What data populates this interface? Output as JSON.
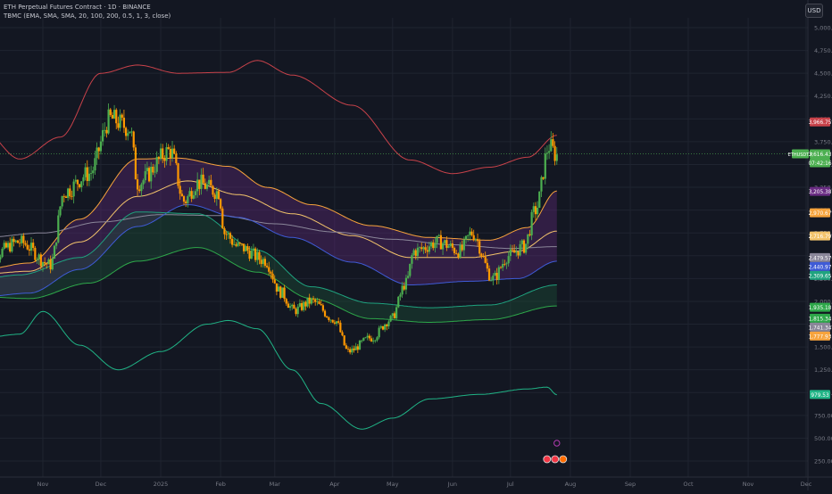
{
  "legend": {
    "symbol_line": "ETH Perpetual Futures Contract · 1D · BINANCE",
    "indicator_line": "TBMC (EMA, SMA, SMA, 20, 100, 200, 0.5, 1, 3, close)"
  },
  "currency_button": "USD",
  "colors": {
    "background": "#131722",
    "grid": "#1f2430",
    "axis_text": "#787b86",
    "candle_up": "#4caf50",
    "candle_down": "#ff9800",
    "upper_outer": "#c8424a",
    "band_orange": "#f7a33c",
    "band_yellow": "#f2c36b",
    "mid_gray": "#8a8699",
    "band_blue": "#3f5bd6",
    "band_teal": "#1fa37f",
    "band_green": "#2ea84a",
    "lower_outer": "#20b486",
    "purple_fill": "#6a2c83",
    "green_fill": "#1c5a3a"
  },
  "chart_data": {
    "type": "candlestick",
    "ylim": [
      250,
      5000
    ],
    "y_ticks": [
      "5,000.00",
      "4,750.00",
      "4,500.00",
      "4,250.00",
      "4,000.00",
      "3,750.00",
      "3,500.00",
      "3,250.00",
      "3,000.00",
      "2,750.00",
      "2,500.00",
      "2,250.00",
      "2,000.00",
      "1,750.00",
      "1,500.00",
      "1,250.00",
      "1,000.00",
      "750.00",
      "500.00",
      "250.00"
    ],
    "x_ticks": [
      "Nov",
      "Dec",
      "2025",
      "Feb",
      "Mar",
      "Apr",
      "May",
      "Jun",
      "Jul",
      "Aug",
      "Sep",
      "Oct",
      "Nov",
      "Dec"
    ],
    "x_tick_dates": [
      "2024-11-01",
      "2024-12-01",
      "2025-01-01",
      "2025-02-01",
      "2025-03-01",
      "2025-04-01",
      "2025-05-01",
      "2025-06-01",
      "2025-07-01",
      "2025-08-01",
      "2025-09-01",
      "2025-10-01",
      "2025-11-01",
      "2025-12-01"
    ],
    "price_anchors": [
      [
        "2024-10-02",
        2450
      ],
      [
        "2024-10-20",
        2650
      ],
      [
        "2024-11-05",
        2400
      ],
      [
        "2024-11-12",
        3200
      ],
      [
        "2024-11-25",
        3400
      ],
      [
        "2024-12-06",
        4000
      ],
      [
        "2024-12-16",
        3900
      ],
      [
        "2024-12-20",
        3300
      ],
      [
        "2025-01-06",
        3650
      ],
      [
        "2025-01-13",
        3100
      ],
      [
        "2025-01-20",
        3300
      ],
      [
        "2025-01-31",
        3200
      ],
      [
        "2025-02-03",
        2750
      ],
      [
        "2025-02-10",
        2600
      ],
      [
        "2025-02-24",
        2450
      ],
      [
        "2025-03-04",
        2100
      ],
      [
        "2025-03-11",
        1900
      ],
      [
        "2025-03-20",
        2000
      ],
      [
        "2025-04-01",
        1800
      ],
      [
        "2025-04-08",
        1450
      ],
      [
        "2025-04-20",
        1600
      ],
      [
        "2025-04-30",
        1800
      ],
      [
        "2025-05-08",
        2200
      ],
      [
        "2025-05-12",
        2550
      ],
      [
        "2025-05-25",
        2650
      ],
      [
        "2025-06-05",
        2550
      ],
      [
        "2025-06-11",
        2750
      ],
      [
        "2025-06-22",
        2250
      ],
      [
        "2025-06-30",
        2500
      ],
      [
        "2025-07-08",
        2600
      ],
      [
        "2025-07-14",
        3000
      ],
      [
        "2025-07-21",
        3700
      ],
      [
        "2025-07-25",
        3600
      ]
    ],
    "series": [
      {
        "role": "upper_outer",
        "color": "#c8424a",
        "points": [
          [
            "2024-10-01",
            3880
          ],
          [
            "2024-10-20",
            3560
          ],
          [
            "2024-11-10",
            3800
          ],
          [
            "2024-12-01",
            4500
          ],
          [
            "2024-12-20",
            4590
          ],
          [
            "2025-01-10",
            4500
          ],
          [
            "2025-02-05",
            4510
          ],
          [
            "2025-02-20",
            4640
          ],
          [
            "2025-03-10",
            4480
          ],
          [
            "2025-04-10",
            4150
          ],
          [
            "2025-05-10",
            3550
          ],
          [
            "2025-06-01",
            3400
          ],
          [
            "2025-06-20",
            3470
          ],
          [
            "2025-07-10",
            3580
          ],
          [
            "2025-07-25",
            3820
          ]
        ]
      },
      {
        "role": "band_orange",
        "color": "#f7a33c",
        "points": [
          [
            "2024-10-01",
            2350
          ],
          [
            "2024-10-25",
            2420
          ],
          [
            "2024-11-20",
            2900
          ],
          [
            "2024-12-20",
            3560
          ],
          [
            "2025-01-10",
            3570
          ],
          [
            "2025-02-05",
            3480
          ],
          [
            "2025-02-25",
            3250
          ],
          [
            "2025-03-20",
            3060
          ],
          [
            "2025-04-20",
            2830
          ],
          [
            "2025-05-20",
            2700
          ],
          [
            "2025-06-20",
            2670
          ],
          [
            "2025-07-10",
            2810
          ],
          [
            "2025-07-25",
            3210
          ]
        ]
      },
      {
        "role": "band_yellow",
        "color": "#f2c36b",
        "points": [
          [
            "2024-10-01",
            2300
          ],
          [
            "2024-10-25",
            2330
          ],
          [
            "2024-11-20",
            2650
          ],
          [
            "2024-12-20",
            3150
          ],
          [
            "2025-01-15",
            3320
          ],
          [
            "2025-02-10",
            3170
          ],
          [
            "2025-03-10",
            2960
          ],
          [
            "2025-04-10",
            2720
          ],
          [
            "2025-05-10",
            2480
          ],
          [
            "2025-06-10",
            2480
          ],
          [
            "2025-07-05",
            2550
          ],
          [
            "2025-07-25",
            2770
          ]
        ]
      },
      {
        "role": "mid_gray",
        "color": "#8a8699",
        "points": [
          [
            "2024-10-01",
            2700
          ],
          [
            "2024-11-01",
            2750
          ],
          [
            "2024-12-01",
            2870
          ],
          [
            "2025-01-01",
            2950
          ],
          [
            "2025-02-01",
            2940
          ],
          [
            "2025-03-01",
            2850
          ],
          [
            "2025-04-01",
            2760
          ],
          [
            "2025-05-01",
            2680
          ],
          [
            "2025-06-01",
            2620
          ],
          [
            "2025-07-01",
            2580
          ],
          [
            "2025-07-25",
            2600
          ]
        ]
      },
      {
        "role": "band_blue",
        "color": "#3f5bd6",
        "points": [
          [
            "2024-10-01",
            2050
          ],
          [
            "2024-10-25",
            2090
          ],
          [
            "2024-11-20",
            2350
          ],
          [
            "2024-12-20",
            2820
          ],
          [
            "2025-01-15",
            3060
          ],
          [
            "2025-02-10",
            2920
          ],
          [
            "2025-03-10",
            2700
          ],
          [
            "2025-04-10",
            2430
          ],
          [
            "2025-05-10",
            2180
          ],
          [
            "2025-06-10",
            2220
          ],
          [
            "2025-07-05",
            2250
          ],
          [
            "2025-07-25",
            2440
          ]
        ]
      },
      {
        "role": "band_teal",
        "color": "#1fa37f",
        "points": [
          [
            "2024-10-01",
            2250
          ],
          [
            "2024-10-20",
            2290
          ],
          [
            "2024-11-20",
            2480
          ],
          [
            "2024-12-20",
            2980
          ],
          [
            "2025-01-20",
            2960
          ],
          [
            "2025-02-20",
            2560
          ],
          [
            "2025-03-20",
            2160
          ],
          [
            "2025-04-20",
            1980
          ],
          [
            "2025-05-20",
            1930
          ],
          [
            "2025-06-20",
            1960
          ],
          [
            "2025-07-25",
            2180
          ]
        ]
      },
      {
        "role": "band_green",
        "color": "#2ea84a",
        "points": [
          [
            "2024-10-01",
            2050
          ],
          [
            "2024-10-25",
            2030
          ],
          [
            "2024-11-25",
            2200
          ],
          [
            "2024-12-20",
            2440
          ],
          [
            "2025-01-20",
            2590
          ],
          [
            "2025-02-20",
            2320
          ],
          [
            "2025-03-20",
            2030
          ],
          [
            "2025-04-20",
            1810
          ],
          [
            "2025-05-20",
            1770
          ],
          [
            "2025-06-20",
            1800
          ],
          [
            "2025-07-25",
            1950
          ]
        ]
      },
      {
        "role": "lower_outer",
        "color": "#20b486",
        "points": [
          [
            "2024-10-01",
            1600
          ],
          [
            "2024-10-20",
            1640
          ],
          [
            "2024-11-01",
            1890
          ],
          [
            "2024-11-20",
            1520
          ],
          [
            "2024-12-10",
            1250
          ],
          [
            "2025-01-01",
            1450
          ],
          [
            "2025-01-25",
            1750
          ],
          [
            "2025-02-05",
            1790
          ],
          [
            "2025-02-20",
            1700
          ],
          [
            "2025-03-10",
            1250
          ],
          [
            "2025-03-25",
            880
          ],
          [
            "2025-04-15",
            600
          ],
          [
            "2025-05-01",
            720
          ],
          [
            "2025-05-20",
            930
          ],
          [
            "2025-06-15",
            980
          ],
          [
            "2025-07-10",
            1040
          ],
          [
            "2025-07-20",
            1060
          ],
          [
            "2025-07-25",
            975
          ]
        ]
      }
    ],
    "price_labels": [
      {
        "value": 3966.75,
        "text": "3,966.75",
        "color": "#c8424a"
      },
      {
        "value": 3616.43,
        "text": "3,616.43",
        "color": "#4caf50",
        "note": "ETHUSDT.P"
      },
      {
        "value": 3570.0,
        "text": "07:42:16",
        "color": "#4caf50"
      },
      {
        "value": 3205.38,
        "text": "3,205.38",
        "color": "#6a2c83"
      },
      {
        "value": 2970.67,
        "text": "2,970.67",
        "color": "#f7a33c"
      },
      {
        "value": 2716.79,
        "text": "2,716.79",
        "color": "#f2c36b"
      },
      {
        "value": 2479.57,
        "text": "2,479.57",
        "color": "#8a8699"
      },
      {
        "value": 2440.97,
        "text": "2,440.97",
        "color": "#3f5bd6"
      },
      {
        "value": 2309.65,
        "text": "2,309.65",
        "color": "#1fa37f"
      },
      {
        "value": 1935.18,
        "text": "1,935.18",
        "color": "#2ea84a"
      },
      {
        "value": 1815.34,
        "text": "1,815.34",
        "color": "#2ea84a"
      },
      {
        "value": 1741.34,
        "text": "1,741.34",
        "color": "#8a8699"
      },
      {
        "value": 1777.93,
        "text": "1,777.93",
        "color": "#f7a33c"
      },
      {
        "value": 979.53,
        "text": "979.53",
        "color": "#20b486"
      }
    ],
    "last_price_tag": "ETHUSDT.P"
  }
}
